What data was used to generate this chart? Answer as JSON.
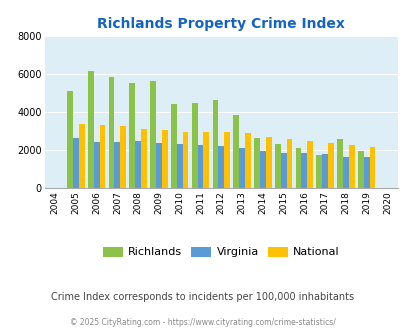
{
  "title": "Richlands Property Crime Index",
  "years": [
    2004,
    2005,
    2006,
    2007,
    2008,
    2009,
    2010,
    2011,
    2012,
    2013,
    2014,
    2015,
    2016,
    2017,
    2018,
    2019,
    2020
  ],
  "richlands": [
    null,
    5100,
    6150,
    5850,
    5550,
    5650,
    4450,
    4500,
    4650,
    3850,
    2650,
    2300,
    2100,
    1750,
    2600,
    1950,
    null
  ],
  "virginia": [
    null,
    2650,
    2450,
    2450,
    2500,
    2400,
    2300,
    2250,
    2200,
    2100,
    1950,
    1850,
    1850,
    1800,
    1650,
    1650,
    null
  ],
  "national": [
    null,
    3400,
    3300,
    3250,
    3100,
    3050,
    2950,
    2950,
    2950,
    2900,
    2700,
    2600,
    2500,
    2400,
    2250,
    2150,
    null
  ],
  "richlands_color": "#8bc34a",
  "virginia_color": "#5b9bd5",
  "national_color": "#ffc000",
  "bg_color": "#ddeef6",
  "ylim": [
    0,
    8000
  ],
  "yticks": [
    0,
    2000,
    4000,
    6000,
    8000
  ],
  "subtitle": "Crime Index corresponds to incidents per 100,000 inhabitants",
  "footer": "© 2025 CityRating.com - https://www.cityrating.com/crime-statistics/",
  "title_color": "#1565c0",
  "subtitle_color": "#444444",
  "footer_color": "#888888",
  "legend_labels": [
    "Richlands",
    "Virginia",
    "National"
  ],
  "bar_width": 0.28
}
